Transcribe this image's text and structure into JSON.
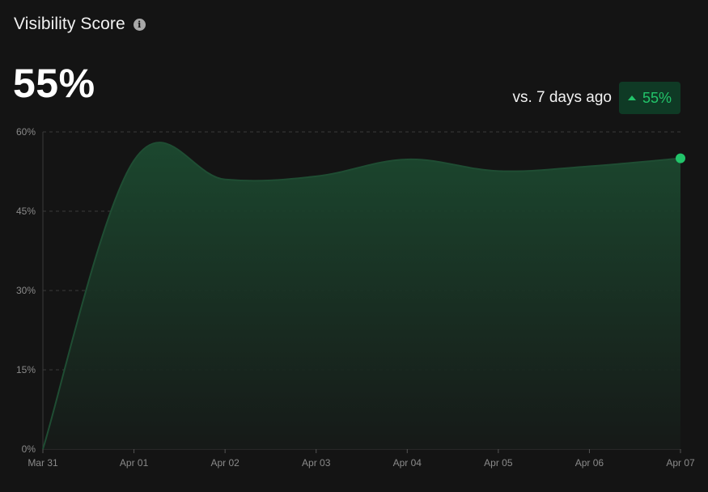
{
  "header": {
    "title": "Visibility Score",
    "info_icon": "info-icon"
  },
  "summary": {
    "value": "55%",
    "compare_label": "vs. 7 days ago",
    "delta": "55%",
    "delta_direction": "up",
    "delta_color": "#22c46a",
    "delta_bg": "#0f3a25"
  },
  "chart_data": {
    "type": "area",
    "x": [
      "Mar 31",
      "Apr 01",
      "Apr 02",
      "Apr 03",
      "Apr 04",
      "Apr 05",
      "Apr 06",
      "Apr 07"
    ],
    "y": [
      0,
      54.6,
      51,
      51.6,
      54.8,
      52.6,
      53.5,
      55
    ],
    "y_unit": "%",
    "ylim": [
      0,
      60
    ],
    "yticks": [
      0,
      15,
      30,
      45,
      60
    ],
    "ytick_labels": [
      "0%",
      "15%",
      "30%",
      "45%",
      "60%"
    ],
    "grid": "horizontal-dashed",
    "line_color": "#1f4d33",
    "fill_color": "#1a3a28",
    "marker_color": "#22c46a",
    "legend": "none"
  }
}
